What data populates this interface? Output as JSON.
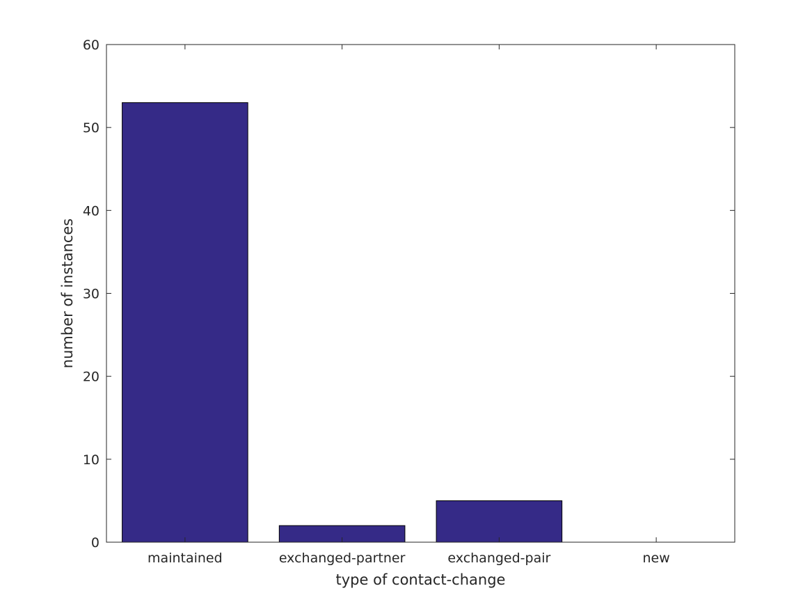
{
  "chart_data": {
    "type": "bar",
    "title": "",
    "xlabel": "type of contact-change",
    "ylabel": "number of instances",
    "categories": [
      "maintained",
      "exchanged-partner",
      "exchanged-pair",
      "new"
    ],
    "values": [
      53,
      2,
      5,
      0
    ],
    "ylim": [
      0,
      60
    ],
    "yticks": [
      0,
      10,
      20,
      30,
      40,
      50,
      60
    ],
    "grid": false,
    "legend": "none",
    "bar_color": "#352A87",
    "bar_edge_color": "#000000"
  }
}
